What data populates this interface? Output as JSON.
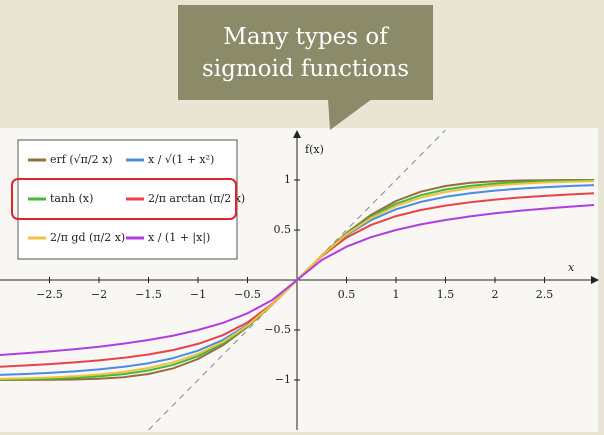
{
  "chart_data": {
    "type": "line",
    "title": "Many types of sigmoid functions",
    "x_label": "x",
    "y_label": "f(x)",
    "x": [
      -3,
      -2.75,
      -2.5,
      -2.25,
      -2,
      -1.75,
      -1.5,
      -1.25,
      -1,
      -0.75,
      -0.5,
      -0.25,
      0,
      0.25,
      0.5,
      0.75,
      1,
      1.25,
      1.5,
      1.75,
      2,
      2.25,
      2.5,
      2.75,
      3
    ],
    "series": [
      {
        "name": "erf (√π/2 x)",
        "color": "#9b6b3c",
        "values": [
          -0.9998,
          -0.9995,
          -0.9983,
          -0.9952,
          -0.9878,
          -0.9717,
          -0.9398,
          -0.8828,
          -0.7899,
          -0.6528,
          -0.469,
          -0.246,
          0,
          0.246,
          0.469,
          0.6528,
          0.7899,
          0.8828,
          0.9398,
          0.9717,
          0.9878,
          0.9952,
          0.9983,
          0.9995,
          0.9998
        ]
      },
      {
        "name": "x / √(1 + x²)",
        "color": "#4a8be6",
        "values": [
          -0.9487,
          -0.9398,
          -0.9285,
          -0.9138,
          -0.8944,
          -0.8682,
          -0.8321,
          -0.7809,
          -0.7071,
          -0.6,
          -0.4472,
          -0.2425,
          0,
          0.2425,
          0.4472,
          0.6,
          0.7071,
          0.7809,
          0.8321,
          0.8682,
          0.8944,
          0.9138,
          0.9285,
          0.9398,
          0.9487
        ]
      },
      {
        "name": "tanh (x)",
        "color": "#3fba3f",
        "values": [
          -0.9951,
          -0.9918,
          -0.9866,
          -0.978,
          -0.964,
          -0.9414,
          -0.9051,
          -0.8483,
          -0.7616,
          -0.6351,
          -0.4621,
          -0.2449,
          0,
          0.2449,
          0.4621,
          0.6351,
          0.7616,
          0.8483,
          0.9051,
          0.9414,
          0.964,
          0.978,
          0.9866,
          0.9918,
          0.9951
        ]
      },
      {
        "name": "2/π arctan (π/2 x)",
        "color": "#e8424a",
        "values": [
          -0.8666,
          -0.855,
          -0.8412,
          -0.8245,
          -0.8038,
          -0.778,
          -0.7445,
          -0.7,
          -0.6391,
          -0.5518,
          -0.4239,
          -0.2383,
          0,
          0.2383,
          0.4239,
          0.5518,
          0.6391,
          0.7,
          0.7445,
          0.778,
          0.8038,
          0.8245,
          0.8412,
          0.855,
          0.8666
        ]
      },
      {
        "name": "2/π gd (π/2 x)",
        "color": "#f0c23e",
        "values": [
          -0.9886,
          -0.9831,
          -0.9749,
          -0.9629,
          -0.945,
          -0.9186,
          -0.8797,
          -0.8226,
          -0.7392,
          -0.6199,
          -0.4555,
          -0.2441,
          0,
          0.2441,
          0.4555,
          0.6199,
          0.7392,
          0.8226,
          0.8797,
          0.9186,
          0.945,
          0.9629,
          0.9749,
          0.9831,
          0.9886
        ]
      },
      {
        "name": "x / (1 + |x|)",
        "color": "#b13ce2",
        "values": [
          -0.75,
          -0.7333,
          -0.7143,
          -0.6923,
          -0.6667,
          -0.6364,
          -0.6,
          -0.5556,
          -0.5,
          -0.4286,
          -0.3333,
          -0.2,
          0,
          0.2,
          0.3333,
          0.4286,
          0.5,
          0.5556,
          0.6,
          0.6364,
          0.6667,
          0.6923,
          0.7143,
          0.7333,
          0.75
        ]
      }
    ],
    "xlim": [
      -3,
      3
    ],
    "ylim": [
      -1.5,
      1.5
    ],
    "xticks": [
      {
        "value": -2.5,
        "label": "−2.5"
      },
      {
        "value": -2,
        "label": "−2"
      },
      {
        "value": -1.5,
        "label": "−1.5"
      },
      {
        "value": -1,
        "label": "−1"
      },
      {
        "value": -0.5,
        "label": "−0.5"
      },
      0.5,
      1,
      1.5,
      2,
      2.5
    ],
    "yticks": [
      {
        "value": -1,
        "label": "−1"
      },
      {
        "value": -0.5,
        "label": "−0.5"
      },
      0.5,
      1
    ],
    "legend": "upper left"
  }
}
